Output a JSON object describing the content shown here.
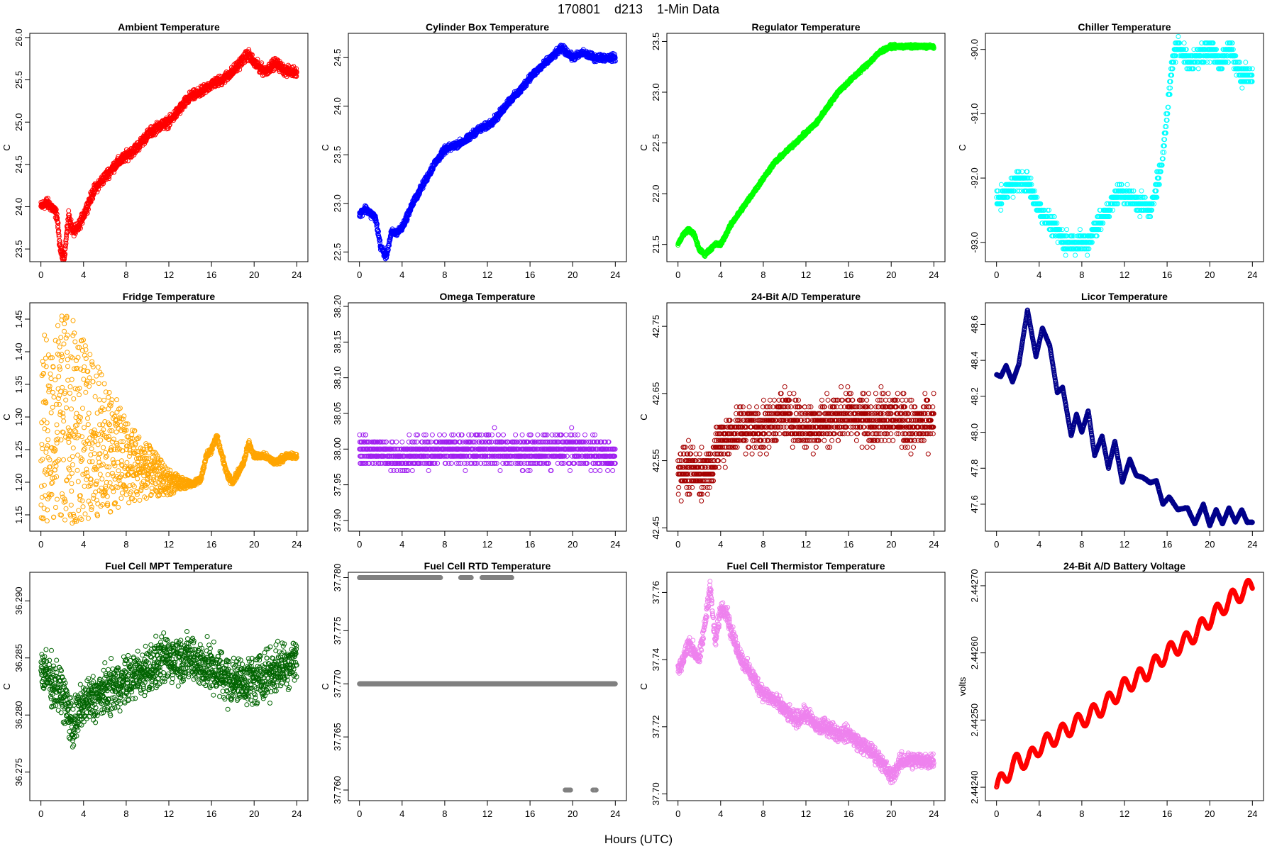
{
  "figure": {
    "title": "170801    d213    1-Min Data",
    "xlabel": "Hours (UTC)"
  },
  "chart_data": [
    {
      "type": "scatter",
      "title": "Ambient Temperature",
      "ylabel": "C",
      "xlim": [
        0,
        24
      ],
      "ylim": [
        23.35,
        26.05
      ],
      "xticks": [
        0,
        4,
        8,
        12,
        16,
        20,
        24
      ],
      "yticks": [
        23.5,
        24.0,
        24.5,
        25.0,
        25.5,
        26.0
      ],
      "ytick_labels": [
        "23.5",
        "24.0",
        "24.5",
        "25.0",
        "25.5",
        "26.0"
      ],
      "color": "#ff0000",
      "noise": 0.1,
      "points_per_hour": 60,
      "x": [
        0,
        0.5,
        1,
        1.5,
        1.8,
        2.2,
        2.6,
        3,
        3.5,
        4,
        5,
        6,
        7,
        8,
        9,
        10,
        11,
        12,
        13,
        14,
        15,
        16,
        17,
        18,
        19,
        19.5,
        20,
        21,
        22,
        23,
        24
      ],
      "y": [
        24.0,
        24.05,
        24.0,
        23.9,
        23.5,
        23.4,
        23.9,
        23.7,
        23.75,
        23.9,
        24.2,
        24.35,
        24.5,
        24.6,
        24.7,
        24.85,
        24.95,
        25.0,
        25.15,
        25.3,
        25.35,
        25.45,
        25.5,
        25.6,
        25.75,
        25.8,
        25.7,
        25.6,
        25.7,
        25.6,
        25.6
      ]
    },
    {
      "type": "scatter",
      "title": "Cylinder Box Temperature",
      "ylabel": "C",
      "xlim": [
        0,
        24
      ],
      "ylim": [
        22.4,
        24.75
      ],
      "xticks": [
        0,
        4,
        8,
        12,
        16,
        20,
        24
      ],
      "yticks": [
        22.5,
        23.0,
        23.5,
        24.0,
        24.5
      ],
      "ytick_labels": [
        "22.5",
        "23.0",
        "23.5",
        "24.0",
        "24.5"
      ],
      "color": "#0000ff",
      "noise": 0.06,
      "points_per_hour": 60,
      "x": [
        0,
        0.5,
        1,
        1.5,
        2,
        2.5,
        3,
        3.5,
        4,
        5,
        6,
        7,
        8,
        9,
        10,
        11,
        12,
        13,
        14,
        15,
        16,
        17,
        18,
        19,
        20,
        21,
        22,
        23,
        24
      ],
      "y": [
        22.88,
        22.95,
        22.9,
        22.85,
        22.55,
        22.45,
        22.7,
        22.7,
        22.75,
        23.0,
        23.2,
        23.4,
        23.55,
        23.6,
        23.65,
        23.75,
        23.8,
        23.9,
        24.05,
        24.15,
        24.3,
        24.4,
        24.5,
        24.6,
        24.5,
        24.55,
        24.5,
        24.5,
        24.5
      ]
    },
    {
      "type": "scatter",
      "title": "Regulator Temperature",
      "ylabel": "C",
      "xlim": [
        0,
        24
      ],
      "ylim": [
        21.33,
        23.58
      ],
      "xticks": [
        0,
        4,
        8,
        12,
        16,
        20,
        24
      ],
      "yticks": [
        21.5,
        22.0,
        22.5,
        23.0,
        23.5
      ],
      "ytick_labels": [
        "21.5",
        "22.0",
        "22.5",
        "23.0",
        "23.5"
      ],
      "color": "#00ff00",
      "noise": 0.03,
      "points_per_hour": 60,
      "x": [
        0,
        0.5,
        1,
        1.5,
        2,
        2.5,
        3,
        3.5,
        4,
        5,
        6,
        7,
        8,
        9,
        10,
        11,
        12,
        13,
        14,
        15,
        16,
        17,
        18,
        19,
        20,
        21,
        22,
        23,
        24
      ],
      "y": [
        21.5,
        21.6,
        21.65,
        21.6,
        21.45,
        21.4,
        21.45,
        21.5,
        21.5,
        21.7,
        21.85,
        22.0,
        22.15,
        22.3,
        22.4,
        22.5,
        22.6,
        22.7,
        22.85,
        23.0,
        23.1,
        23.2,
        23.3,
        23.4,
        23.45,
        23.45,
        23.45,
        23.45,
        23.45
      ]
    },
    {
      "type": "scatter",
      "title": "Chiller Temperature",
      "ylabel": "C",
      "xlim": [
        0,
        24
      ],
      "ylim": [
        -93.3,
        -89.75
      ],
      "xticks": [
        0,
        4,
        8,
        12,
        16,
        20,
        24
      ],
      "yticks": [
        -93.0,
        -92.0,
        -91.0,
        -90.0
      ],
      "ytick_labels": [
        "-93.0",
        "-92.0",
        "-91.0",
        "-90.0"
      ],
      "color": "#00ffff",
      "noise": 0.25,
      "quantum": 0.1,
      "points_per_hour": 60,
      "x": [
        0,
        1,
        2,
        3,
        3.5,
        4.5,
        5.5,
        6.5,
        7.5,
        8.5,
        9.5,
        10.5,
        11.5,
        12.5,
        13.5,
        14.5,
        15,
        15.5,
        16,
        16.5,
        17,
        18,
        19,
        20,
        21,
        22,
        23,
        24
      ],
      "y": [
        -92.4,
        -92.2,
        -92.0,
        -92.1,
        -92.3,
        -92.6,
        -92.8,
        -93.0,
        -93.0,
        -93.0,
        -92.7,
        -92.5,
        -92.2,
        -92.3,
        -92.4,
        -92.5,
        -92.1,
        -91.8,
        -91.0,
        -90.2,
        -89.9,
        -90.2,
        -90.1,
        -90.0,
        -90.2,
        -90.0,
        -90.4,
        -90.4
      ]
    },
    {
      "type": "scatter",
      "title": "Fridge Temperature",
      "ylabel": "C",
      "xlim": [
        0,
        24
      ],
      "ylim": [
        1.125,
        1.475
      ],
      "xticks": [
        0,
        4,
        8,
        12,
        16,
        20,
        24
      ],
      "yticks": [
        1.15,
        1.2,
        1.25,
        1.3,
        1.35,
        1.4,
        1.45
      ],
      "ytick_labels": [
        "1.15",
        "1.20",
        "1.25",
        "1.30",
        "1.35",
        "1.40",
        "1.45"
      ],
      "color": "#ffa500",
      "noise": 0.008,
      "points_per_hour": 60,
      "x": [
        0,
        2,
        4,
        6,
        8,
        10,
        12,
        13,
        14,
        15,
        15.5,
        16,
        16.5,
        17,
        17.5,
        18,
        19,
        19.5,
        20,
        21,
        22,
        23,
        24
      ],
      "y": [
        1.25,
        1.29,
        1.28,
        1.26,
        1.24,
        1.22,
        1.205,
        1.2,
        1.195,
        1.205,
        1.24,
        1.25,
        1.27,
        1.24,
        1.21,
        1.2,
        1.23,
        1.26,
        1.24,
        1.24,
        1.23,
        1.24,
        1.24
      ],
      "envelope": {
        "x": [
          0,
          2.5,
          4,
          6,
          8,
          10,
          12,
          13.5,
          14.5
        ],
        "ylo": [
          1.14,
          1.13,
          1.135,
          1.15,
          1.165,
          1.175,
          1.18,
          1.19,
          1.195
        ],
        "yhi": [
          1.42,
          1.47,
          1.42,
          1.36,
          1.3,
          1.26,
          1.22,
          1.205,
          1.2
        ]
      }
    },
    {
      "type": "scatter",
      "title": "Omega Temperature",
      "ylabel": "",
      "xlim": [
        0,
        24
      ],
      "ylim": [
        37.885,
        38.205
      ],
      "xticks": [
        0,
        4,
        8,
        12,
        16,
        20,
        24
      ],
      "yticks": [
        37.9,
        37.95,
        38.0,
        38.05,
        38.1,
        38.15,
        38.2
      ],
      "ytick_labels": [
        "37.90",
        "37.95",
        "38.00",
        "38.05",
        "38.10",
        "38.15",
        "38.20"
      ],
      "color": "#a020f0",
      "noise": 0.035,
      "quantum": 0.01,
      "points_per_hour": 60,
      "x": [
        0,
        4,
        8,
        12,
        16,
        20,
        24
      ],
      "y": [
        38.0,
        37.99,
        38.0,
        38.0,
        37.995,
        38.0,
        37.99
      ]
    },
    {
      "type": "scatter",
      "title": "24-Bit A/D Temperature",
      "ylabel": "C",
      "xlim": [
        0,
        24
      ],
      "ylim": [
        42.445,
        42.785
      ],
      "xticks": [
        0,
        4,
        8,
        12,
        16,
        20,
        24
      ],
      "yticks": [
        42.45,
        42.55,
        42.65,
        42.75
      ],
      "ytick_labels": [
        "42.45",
        "42.55",
        "42.65",
        "42.75"
      ],
      "color": "#a50000",
      "noise": 0.06,
      "quantum": 0.01,
      "points_per_hour": 60,
      "x": [
        0,
        2,
        3,
        4,
        6,
        8,
        10,
        12,
        14,
        16,
        18,
        20,
        22,
        24
      ],
      "y": [
        42.54,
        42.53,
        42.54,
        42.58,
        42.6,
        42.6,
        42.62,
        42.6,
        42.61,
        42.62,
        42.61,
        42.62,
        42.6,
        42.61
      ]
    },
    {
      "type": "scatter",
      "title": "Licor Temperature",
      "ylabel": "",
      "xlim": [
        0,
        24
      ],
      "ylim": [
        47.45,
        48.72
      ],
      "xticks": [
        0,
        4,
        8,
        12,
        16,
        20,
        24
      ],
      "yticks": [
        47.6,
        47.8,
        48.0,
        48.2,
        48.4,
        48.6
      ],
      "ytick_labels": [
        "47.6",
        "47.8",
        "48.0",
        "48.2",
        "48.4",
        "48.6"
      ],
      "color": "#00008b",
      "noise": 0.004,
      "points_per_hour": 60,
      "x": [
        0,
        0.4,
        0.9,
        1.5,
        2.1,
        2.9,
        3.7,
        4.3,
        5.0,
        5.7,
        6.2,
        7.0,
        7.5,
        8.0,
        8.6,
        9.2,
        9.9,
        10.5,
        11.1,
        11.8,
        12.5,
        13.1,
        13.7,
        14.4,
        15.0,
        15.6,
        16.2,
        17.0,
        17.9,
        18.6,
        19.4,
        20.0,
        20.6,
        21.2,
        21.8,
        22.4,
        23.0,
        23.5,
        24.0
      ],
      "y": [
        48.32,
        48.31,
        48.37,
        48.28,
        48.38,
        48.68,
        48.42,
        48.58,
        48.48,
        48.22,
        48.25,
        47.98,
        48.1,
        48.0,
        48.12,
        47.87,
        47.98,
        47.8,
        47.95,
        47.72,
        47.85,
        47.76,
        47.75,
        47.72,
        47.73,
        47.6,
        47.64,
        47.57,
        47.58,
        47.49,
        47.6,
        47.48,
        47.57,
        47.49,
        47.58,
        47.5,
        47.57,
        47.5,
        47.5
      ]
    },
    {
      "type": "scatter",
      "title": "Fuel Cell MPT Temperature",
      "ylabel": "C",
      "xlim": [
        0,
        24
      ],
      "ylim": [
        36.2725,
        36.2925
      ],
      "xticks": [
        0,
        4,
        8,
        12,
        16,
        20,
        24
      ],
      "yticks": [
        36.275,
        36.28,
        36.285,
        36.29
      ],
      "ytick_labels": [
        "36.275",
        "36.280",
        "36.285",
        "36.290"
      ],
      "color": "#006400",
      "noise": 0.0035,
      "points_per_hour": 60,
      "x": [
        0,
        2,
        3,
        4,
        6,
        8,
        10,
        12,
        14,
        16,
        18,
        20,
        22,
        24
      ],
      "y": [
        36.284,
        36.282,
        36.279,
        36.281,
        36.282,
        36.283,
        36.284,
        36.285,
        36.285,
        36.284,
        36.283,
        36.283,
        36.284,
        36.285
      ]
    },
    {
      "type": "scatter",
      "title": "Fuel Cell RTD Temperature",
      "ylabel": "C",
      "xlim": [
        0,
        24
      ],
      "ylim": [
        37.759,
        37.7805
      ],
      "xticks": [
        0,
        4,
        8,
        12,
        16,
        20,
        24
      ],
      "yticks": [
        37.76,
        37.765,
        37.77,
        37.775,
        37.78
      ],
      "ytick_labels": [
        "37.760",
        "37.765",
        "37.770",
        "37.775",
        "37.780"
      ],
      "color": "#808080",
      "discrete_levels": [
        {
          "y": 37.78,
          "ranges": [
            [
              0,
              7.6
            ],
            [
              9.5,
              10.5
            ],
            [
              11.5,
              14.3
            ]
          ]
        },
        {
          "y": 37.77,
          "ranges": [
            [
              0,
              24
            ]
          ]
        },
        {
          "y": 37.76,
          "ranges": [
            [
              19.3,
              19.8
            ],
            [
              21.9,
              22.2
            ]
          ]
        }
      ]
    },
    {
      "type": "scatter",
      "title": "Fuel Cell Thermistor Temperature",
      "ylabel": "C",
      "xlim": [
        0,
        24
      ],
      "ylim": [
        37.698,
        37.766
      ],
      "xticks": [
        0,
        4,
        8,
        12,
        16,
        20,
        24
      ],
      "yticks": [
        37.7,
        37.72,
        37.74,
        37.76
      ],
      "ytick_labels": [
        "37.70",
        "37.72",
        "37.74",
        "37.76"
      ],
      "color": "#ee82ee",
      "noise": 0.004,
      "points_per_hour": 60,
      "x": [
        0,
        0.5,
        1,
        2,
        2.5,
        3,
        3.5,
        4,
        4.5,
        5,
        6,
        7,
        8,
        9,
        10,
        11,
        12,
        13,
        14,
        15,
        16,
        17,
        18,
        19,
        20,
        21,
        22,
        23,
        24
      ],
      "y": [
        37.737,
        37.74,
        37.745,
        37.74,
        37.75,
        37.762,
        37.745,
        37.755,
        37.755,
        37.748,
        37.74,
        37.735,
        37.73,
        37.728,
        37.725,
        37.722,
        37.724,
        37.72,
        37.72,
        37.718,
        37.718,
        37.715,
        37.713,
        37.71,
        37.705,
        37.71,
        37.71,
        37.71,
        37.71
      ]
    },
    {
      "type": "scatter",
      "title": "24-Bit A/D Battery Voltage",
      "ylabel": "volts",
      "xlim": [
        0,
        24
      ],
      "ylim": [
        2.44238,
        2.44272
      ],
      "xticks": [
        0,
        4,
        8,
        12,
        16,
        20,
        24
      ],
      "yticks": [
        2.4424,
        2.4425,
        2.4426,
        2.4427
      ],
      "ytick_labels": [
        "2.44240",
        "2.44250",
        "2.44260",
        "2.44270"
      ],
      "color": "#ff0000",
      "noise": 5e-07,
      "points_per_hour": 60,
      "wave": {
        "amplitude": 1.2e-05,
        "period_hours": 1.45
      },
      "x": [
        0,
        1,
        2,
        3,
        4,
        6,
        8,
        10,
        12,
        14,
        16,
        18,
        20,
        22,
        24
      ],
      "y": [
        2.4424,
        2.44242,
        2.44244,
        2.44244,
        2.44246,
        2.44248,
        2.4425,
        2.44252,
        2.44255,
        2.44257,
        2.4426,
        2.44262,
        2.44265,
        2.44268,
        2.4427
      ]
    }
  ]
}
